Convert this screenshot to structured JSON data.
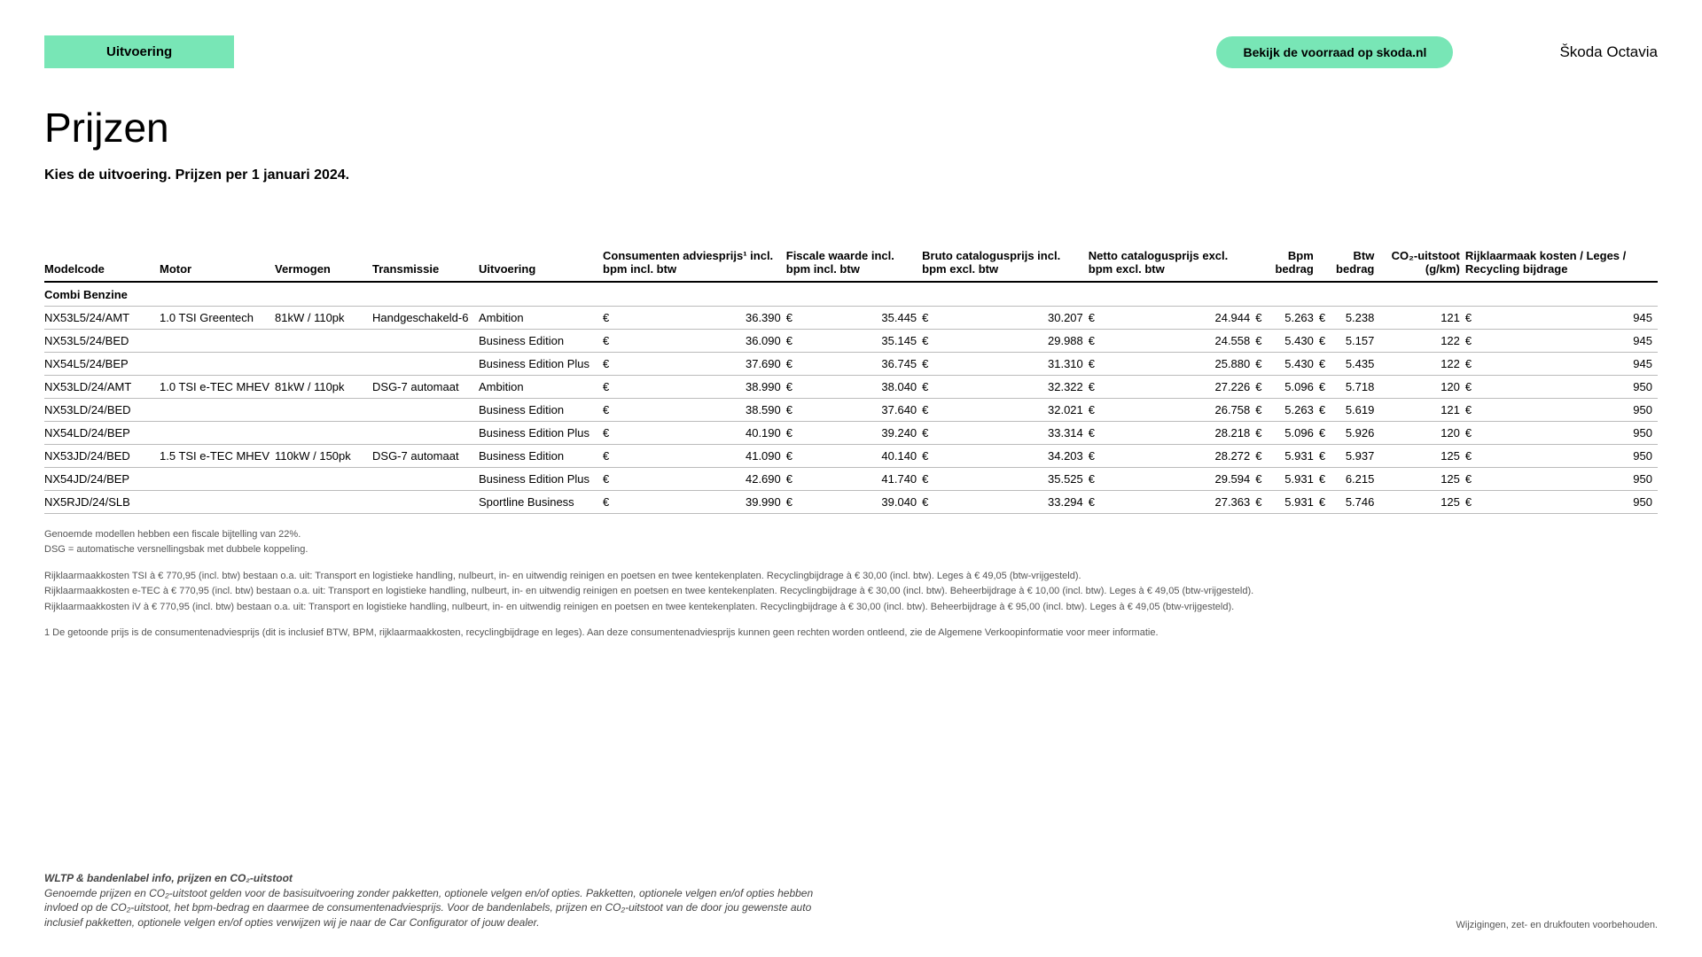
{
  "header": {
    "tab_label": "Uitvoering",
    "cta_label": "Bekijk de voorraad op skoda.nl",
    "brand": "Škoda Octavia"
  },
  "title": "Prijzen",
  "subtitle": "Kies de uitvoering. Prijzen per 1 januari 2024.",
  "table": {
    "columns": [
      "Modelcode",
      "Motor",
      "Vermogen",
      "Transmissie",
      "Uitvoering",
      "Consumenten adviesprijs¹ incl. bpm incl. btw",
      "Fiscale waarde incl. bpm incl. btw",
      "Bruto catalogusprijs incl. bpm excl. btw",
      "Netto catalogusprijs excl. bpm excl. btw",
      "Bpm bedrag",
      "Btw bedrag",
      "CO₂-uitstoot (g/km)",
      "Rijklaarmaak kosten / Leges / Recycling bijdrage"
    ],
    "section": "Combi Benzine",
    "rows": [
      {
        "model": "NX53L5/24/AMT",
        "motor": "1.0 TSI Greentech",
        "verm": "81kW / 110pk",
        "trans": "Handgeschakeld-6",
        "uitv": "Ambition",
        "p1": "36.390",
        "p2": "35.445",
        "p3": "30.207",
        "p4": "24.944",
        "p5": "5.263",
        "p6": "5.238",
        "co2": "121",
        "rk": "945"
      },
      {
        "model": "NX53L5/24/BED",
        "motor": "",
        "verm": "",
        "trans": "",
        "uitv": "Business Edition",
        "p1": "36.090",
        "p2": "35.145",
        "p3": "29.988",
        "p4": "24.558",
        "p5": "5.430",
        "p6": "5.157",
        "co2": "122",
        "rk": "945"
      },
      {
        "model": "NX54L5/24/BEP",
        "motor": "",
        "verm": "",
        "trans": "",
        "uitv": "Business Edition Plus",
        "p1": "37.690",
        "p2": "36.745",
        "p3": "31.310",
        "p4": "25.880",
        "p5": "5.430",
        "p6": "5.435",
        "co2": "122",
        "rk": "945"
      },
      {
        "model": "NX53LD/24/AMT",
        "motor": "1.0 TSI e-TEC MHEV",
        "verm": "81kW / 110pk",
        "trans": "DSG-7 automaat",
        "uitv": "Ambition",
        "p1": "38.990",
        "p2": "38.040",
        "p3": "32.322",
        "p4": "27.226",
        "p5": "5.096",
        "p6": "5.718",
        "co2": "120",
        "rk": "950"
      },
      {
        "model": "NX53LD/24/BED",
        "motor": "",
        "verm": "",
        "trans": "",
        "uitv": "Business Edition",
        "p1": "38.590",
        "p2": "37.640",
        "p3": "32.021",
        "p4": "26.758",
        "p5": "5.263",
        "p6": "5.619",
        "co2": "121",
        "rk": "950"
      },
      {
        "model": "NX54LD/24/BEP",
        "motor": "",
        "verm": "",
        "trans": "",
        "uitv": "Business Edition Plus",
        "p1": "40.190",
        "p2": "39.240",
        "p3": "33.314",
        "p4": "28.218",
        "p5": "5.096",
        "p6": "5.926",
        "co2": "120",
        "rk": "950"
      },
      {
        "model": "NX53JD/24/BED",
        "motor": "1.5 TSI e-TEC MHEV",
        "verm": "110kW / 150pk",
        "trans": "DSG-7 automaat",
        "uitv": "Business Edition",
        "p1": "41.090",
        "p2": "40.140",
        "p3": "34.203",
        "p4": "28.272",
        "p5": "5.931",
        "p6": "5.937",
        "co2": "125",
        "rk": "950"
      },
      {
        "model": "NX54JD/24/BEP",
        "motor": "",
        "verm": "",
        "trans": "",
        "uitv": "Business Edition Plus",
        "p1": "42.690",
        "p2": "41.740",
        "p3": "35.525",
        "p4": "29.594",
        "p5": "5.931",
        "p6": "6.215",
        "co2": "125",
        "rk": "950"
      },
      {
        "model": "NX5RJD/24/SLB",
        "motor": "",
        "verm": "",
        "trans": "",
        "uitv": "Sportline Business",
        "p1": "39.990",
        "p2": "39.040",
        "p3": "33.294",
        "p4": "27.363",
        "p5": "5.931",
        "p6": "5.746",
        "co2": "125",
        "rk": "950"
      }
    ],
    "currency": "€"
  },
  "footnotes": {
    "block1": [
      "Genoemde modellen hebben een fiscale bijtelling van 22%.",
      "DSG = automatische versnellingsbak met dubbele koppeling."
    ],
    "block2": [
      "Rijklaarmaakkosten TSI à € 770,95 (incl. btw) bestaan o.a. uit: Transport en logistieke handling, nulbeurt, in- en uitwendig reinigen en poetsen en twee kentekenplaten. Recyclingbijdrage à € 30,00 (incl. btw). Leges à € 49,05 (btw-vrijgesteld).",
      "Rijklaarmaakkosten e-TEC à € 770,95 (incl. btw) bestaan o.a. uit: Transport en logistieke handling, nulbeurt, in- en uitwendig reinigen en poetsen en twee kentekenplaten. Recyclingbijdrage à € 30,00 (incl. btw). Beheerbijdrage à € 10,00 (incl. btw). Leges à € 49,05 (btw-vrijgesteld).",
      "Rijklaarmaakkosten iV à € 770,95 (incl. btw) bestaan o.a. uit: Transport en logistieke handling, nulbeurt, in- en uitwendig reinigen en poetsen en twee kentekenplaten. Recyclingbijdrage à € 30,00 (incl. btw). Beheerbijdrage à € 95,00 (incl. btw). Leges à € 49,05 (btw-vrijgesteld)."
    ],
    "block3": [
      "1   De getoonde prijs is de consumentenadviesprijs (dit is inclusief BTW, BPM, rijklaarmaakkosten, recyclingbijdrage en leges). Aan deze consumentenadviesprijs kunnen geen rechten worden ontleend, zie de Algemene Verkoopinformatie voor meer informatie."
    ]
  },
  "bottom": {
    "heading": "WLTP & bandenlabel info, prijzen en CO₂-uitstoot",
    "body": "Genoemde prijzen en CO₂-uitstoot gelden voor de basisuitvoering zonder pakketten, optionele velgen en/of opties. Pakketten, optionele velgen en/of opties hebben invloed op de CO₂-uitstoot, het bpm-bedrag en daarmee de consumentenadviesprijs. Voor de bandenlabels, prijzen en CO₂-uitstoot van de door jou gewenste auto inclusief pakketten, optionele velgen en/of opties verwijzen wij je naar de Car Configurator of jouw dealer.",
    "disclaimer": "Wijzigingen, zet- en drukfouten voorbehouden."
  },
  "colors": {
    "accent": "#78e6b6",
    "text": "#000000",
    "muted": "#555555",
    "border": "#bbbbbb",
    "background": "#ffffff"
  }
}
